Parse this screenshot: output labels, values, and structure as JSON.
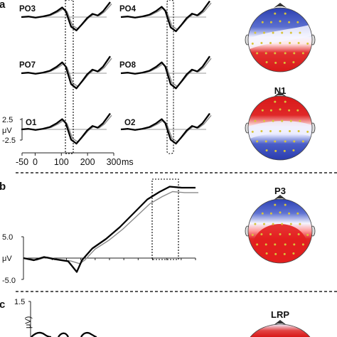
{
  "panels": {
    "a": "a",
    "b": "b",
    "c": "c"
  },
  "chart_data": [
    {
      "type": "line",
      "panel": "a",
      "series": [
        {
          "name": "",
          "color": "#000000"
        },
        {
          "name": "",
          "color": "#8a8a8a"
        }
      ],
      "channels": [
        {
          "label": "PO3",
          "key": "PO3"
        },
        {
          "label": "PO4",
          "key": "PO4"
        },
        {
          "label": "PO7",
          "key": "PO7"
        },
        {
          "label": "PO8",
          "key": "PO8"
        },
        {
          "label": "O1",
          "key": "O1"
        },
        {
          "label": "O2",
          "key": "O2"
        }
      ],
      "x_ticks": [
        "-50",
        "0",
        "100",
        "200",
        "300"
      ],
      "x_unit": "ms",
      "xlim": [
        -50,
        300
      ],
      "y_ticks": [
        "2.5",
        "μV",
        "-2.5"
      ],
      "ylim": [
        -2.5,
        2.5
      ],
      "window_ms": [
        110,
        140
      ],
      "topomap_title": "",
      "topomap2_title": "N1"
    },
    {
      "type": "line",
      "panel": "b",
      "title": "P3",
      "y_ticks": [
        "5.0",
        "μV",
        "-5.0"
      ],
      "ylim": [
        -5,
        5
      ]
    },
    {
      "type": "line",
      "panel": "c",
      "title": "LRP",
      "y_ticks": [
        "1.5"
      ],
      "ylabel": "μV)"
    }
  ]
}
